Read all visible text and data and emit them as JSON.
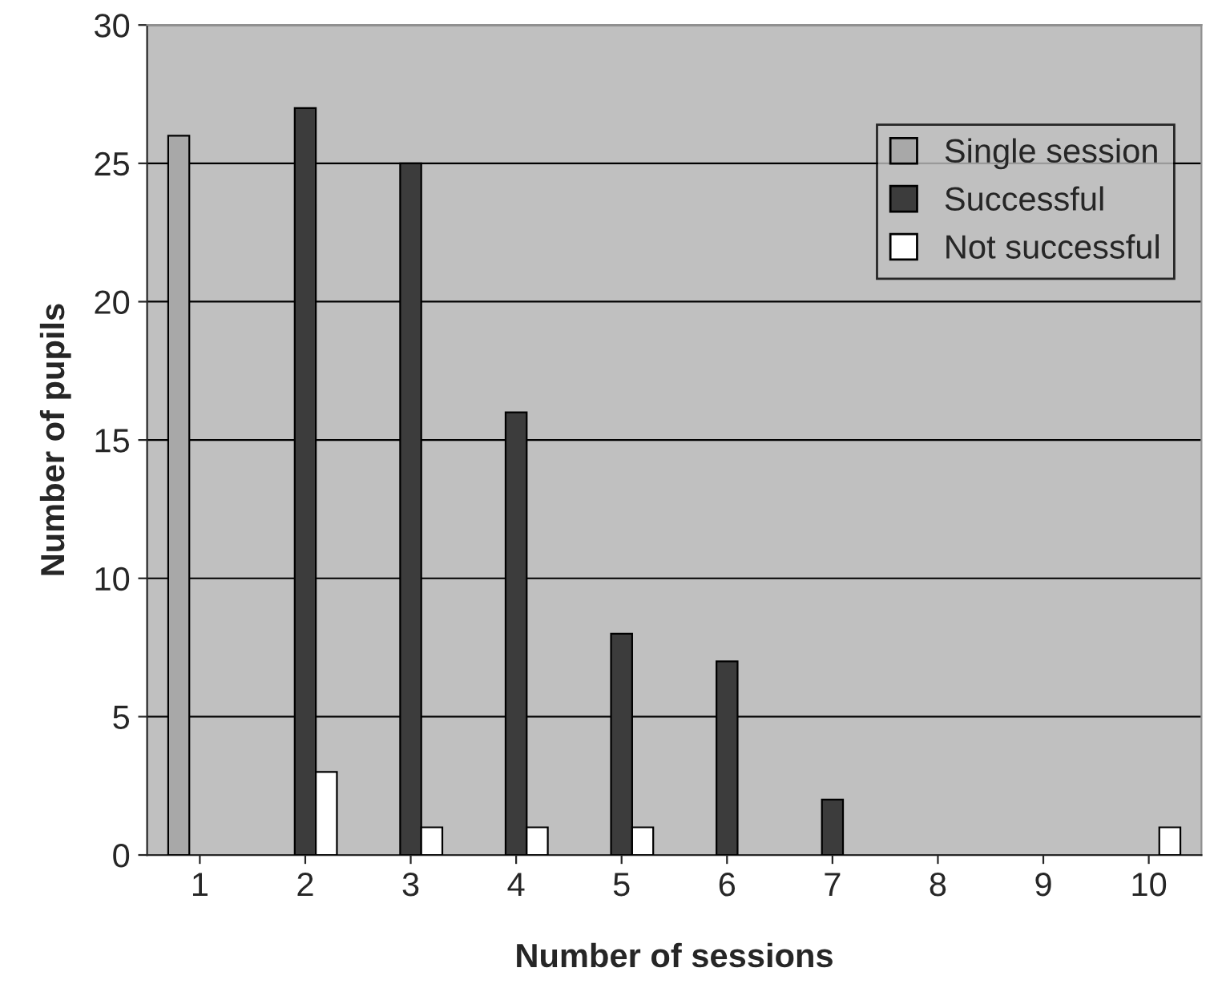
{
  "chart_data": {
    "type": "bar",
    "xlabel": "Number of sessions",
    "ylabel": "Number of pupils",
    "categories": [
      "1",
      "2",
      "3",
      "4",
      "5",
      "6",
      "7",
      "8",
      "9",
      "10"
    ],
    "series": [
      {
        "name": "Single session",
        "color": "#a8a8a8",
        "values": [
          26,
          null,
          null,
          null,
          null,
          null,
          null,
          null,
          null,
          null
        ]
      },
      {
        "name": "Successful",
        "color": "#3c3c3c",
        "values": [
          null,
          27,
          25,
          16,
          8,
          7,
          2,
          null,
          null,
          null
        ]
      },
      {
        "name": "Not successful",
        "color": "#ffffff",
        "values": [
          null,
          3,
          1,
          1,
          1,
          null,
          null,
          null,
          null,
          1
        ]
      }
    ],
    "ylim": [
      0,
      30
    ],
    "yticks": [
      0,
      5,
      10,
      15,
      20,
      25,
      30
    ],
    "grid": "y",
    "legend": "top right"
  }
}
